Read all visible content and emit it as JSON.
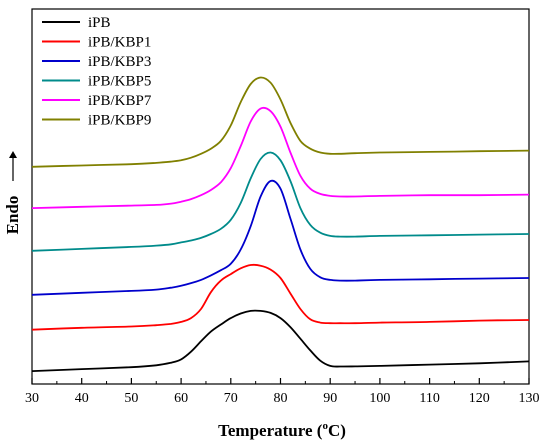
{
  "chart_data": {
    "type": "line",
    "title": "",
    "xlabel_main": "Temperature (",
    "xlabel_sup": "o",
    "xlabel_tail": "C)",
    "ylabel": "Endo",
    "xlim": [
      30,
      130
    ],
    "xticks": [
      "30",
      "40",
      "50",
      "60",
      "70",
      "80",
      "90",
      "100",
      "110",
      "120",
      "130"
    ],
    "yticks": [],
    "grid": false,
    "legend_position": "top-left",
    "x": [
      30,
      40,
      50,
      55,
      58,
      60,
      62,
      64,
      66,
      68,
      70,
      72,
      74,
      76,
      78,
      80,
      82,
      84,
      86,
      88,
      90,
      92,
      95,
      100,
      110,
      120,
      130
    ],
    "series": [
      {
        "name": "iPB",
        "color": "#000000",
        "values": [
          0.0,
          0.15,
          0.3,
          0.45,
          0.65,
          0.9,
          1.5,
          2.3,
          3.05,
          3.6,
          4.1,
          4.45,
          4.65,
          4.65,
          4.5,
          4.1,
          3.4,
          2.5,
          1.6,
          0.8,
          0.4,
          0.35,
          0.36,
          0.4,
          0.5,
          0.6,
          0.75
        ]
      },
      {
        "name": "iPB/KBP1",
        "color": "#ff0000",
        "values": [
          3.2,
          3.35,
          3.45,
          3.55,
          3.65,
          3.8,
          4.1,
          4.8,
          6.1,
          7.0,
          7.5,
          7.95,
          8.2,
          8.15,
          7.85,
          7.2,
          6.0,
          4.8,
          4.0,
          3.75,
          3.7,
          3.7,
          3.7,
          3.75,
          3.8,
          3.9,
          3.95
        ]
      },
      {
        "name": "iPB/KBP3",
        "color": "#0000cc",
        "values": [
          5.9,
          6.05,
          6.2,
          6.3,
          6.45,
          6.6,
          6.8,
          7.05,
          7.4,
          7.8,
          8.3,
          9.4,
          11.2,
          13.5,
          14.7,
          14.1,
          11.8,
          9.4,
          7.9,
          7.25,
          7.05,
          7.0,
          7.0,
          7.05,
          7.1,
          7.15,
          7.2
        ]
      },
      {
        "name": "iPB/KBP5",
        "color": "#008b8b",
        "values": [
          9.3,
          9.45,
          9.6,
          9.7,
          9.8,
          9.95,
          10.1,
          10.3,
          10.6,
          11.0,
          11.7,
          13.0,
          14.9,
          16.4,
          16.9,
          16.3,
          14.7,
          12.6,
          11.3,
          10.7,
          10.45,
          10.4,
          10.4,
          10.45,
          10.5,
          10.55,
          10.6
        ]
      },
      {
        "name": "iPB/KBP7",
        "color": "#ff00ff",
        "values": [
          12.6,
          12.7,
          12.8,
          12.85,
          12.95,
          13.1,
          13.3,
          13.6,
          14.0,
          14.6,
          15.7,
          17.4,
          19.3,
          20.3,
          20.1,
          18.9,
          16.9,
          15.1,
          14.1,
          13.7,
          13.55,
          13.5,
          13.5,
          13.55,
          13.6,
          13.6,
          13.65
        ]
      },
      {
        "name": "iPB/KBP9",
        "color": "#808000",
        "values": [
          15.8,
          15.9,
          16.0,
          16.1,
          16.2,
          16.3,
          16.5,
          16.8,
          17.2,
          17.8,
          19.0,
          20.8,
          22.2,
          22.7,
          22.3,
          21.0,
          19.2,
          17.8,
          17.2,
          16.9,
          16.8,
          16.8,
          16.85,
          16.9,
          16.95,
          17.0,
          17.05
        ]
      }
    ]
  }
}
